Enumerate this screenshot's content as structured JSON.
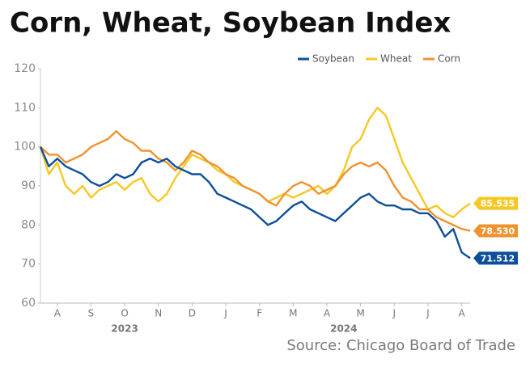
{
  "chart_data": {
    "type": "line",
    "title": "Corn, Wheat, Soybean Index",
    "source": "Source: Chicago Board of Trade",
    "categories": [
      null,
      null,
      "A",
      null,
      null,
      null,
      "S",
      null,
      null,
      null,
      "O",
      null,
      null,
      null,
      "N",
      null,
      null,
      null,
      "D",
      null,
      null,
      null,
      "J",
      null,
      null,
      null,
      "F",
      null,
      null,
      null,
      "M",
      null,
      null,
      null,
      "A",
      null,
      null,
      null,
      "M",
      null,
      null,
      null,
      "J",
      null,
      null,
      null,
      "J",
      null,
      null,
      null,
      "A",
      null
    ],
    "years": [
      "2023",
      "2024"
    ],
    "ylim": [
      60,
      120
    ],
    "yticks": [
      60,
      70,
      80,
      90,
      100,
      110,
      120
    ],
    "legend": "top-right",
    "grid": false,
    "series": [
      {
        "name": "Soybean",
        "color": "#0d4f9a",
        "values": [
          100,
          95,
          97,
          95,
          94,
          93,
          91,
          90,
          91,
          93,
          92,
          93,
          96,
          97,
          96,
          97,
          95,
          94,
          93,
          93,
          91,
          88,
          87,
          86,
          85,
          84,
          82,
          80,
          81,
          83,
          85,
          86,
          84,
          83,
          82,
          81,
          83,
          85,
          87,
          88,
          86,
          85,
          85,
          84,
          84,
          83,
          83,
          81,
          77,
          79,
          73,
          71.512
        ],
        "value_labels": [
          null,
          null,
          null,
          null,
          null,
          null,
          null,
          null,
          null,
          null,
          null,
          null,
          null,
          null,
          null,
          null,
          null,
          null,
          null,
          null,
          null,
          null,
          null,
          null,
          null,
          null,
          null,
          null,
          null,
          null,
          null,
          null,
          null,
          null,
          null,
          null,
          null,
          null,
          null,
          null,
          null,
          null,
          null,
          null,
          null,
          null,
          null,
          null,
          null,
          null,
          null,
          "71.512"
        ]
      },
      {
        "name": "Wheat",
        "color": "#f7c823",
        "values": [
          100,
          93,
          96,
          90,
          88,
          90,
          87,
          89,
          90,
          91,
          89,
          91,
          92,
          88,
          86,
          88,
          92,
          95,
          98,
          97,
          96,
          94,
          93,
          91,
          90,
          89,
          88,
          86,
          87,
          88,
          87,
          88,
          89,
          90,
          88,
          90,
          94,
          100,
          102,
          107,
          110,
          108,
          102,
          96,
          92,
          88,
          84,
          85,
          83,
          82,
          84,
          85.535
        ],
        "value_labels": [
          null,
          null,
          null,
          null,
          null,
          null,
          null,
          null,
          null,
          null,
          null,
          null,
          null,
          null,
          null,
          null,
          null,
          null,
          null,
          null,
          null,
          null,
          null,
          null,
          null,
          null,
          null,
          null,
          null,
          null,
          null,
          null,
          null,
          null,
          null,
          null,
          null,
          null,
          null,
          null,
          null,
          null,
          null,
          null,
          null,
          null,
          null,
          null,
          null,
          null,
          null,
          "85.535"
        ]
      },
      {
        "name": "Corn",
        "color": "#f0922e",
        "values": [
          100,
          98,
          98,
          96,
          97,
          98,
          100,
          101,
          102,
          104,
          102,
          101,
          99,
          99,
          97,
          96,
          94,
          96,
          99,
          98,
          96,
          95,
          93,
          92,
          90,
          89,
          88,
          86,
          85,
          88,
          90,
          91,
          90,
          88,
          89,
          90,
          93,
          95,
          96,
          95,
          96,
          94,
          90,
          87,
          86,
          84,
          84,
          82,
          81,
          80,
          79,
          78.53
        ],
        "value_labels": [
          null,
          null,
          null,
          null,
          null,
          null,
          null,
          null,
          null,
          null,
          null,
          null,
          null,
          null,
          null,
          null,
          null,
          null,
          null,
          null,
          null,
          null,
          null,
          null,
          null,
          null,
          null,
          null,
          null,
          null,
          null,
          null,
          null,
          null,
          null,
          null,
          null,
          null,
          null,
          null,
          null,
          null,
          null,
          null,
          null,
          null,
          null,
          null,
          null,
          null,
          null,
          "78.530"
        ]
      }
    ]
  }
}
